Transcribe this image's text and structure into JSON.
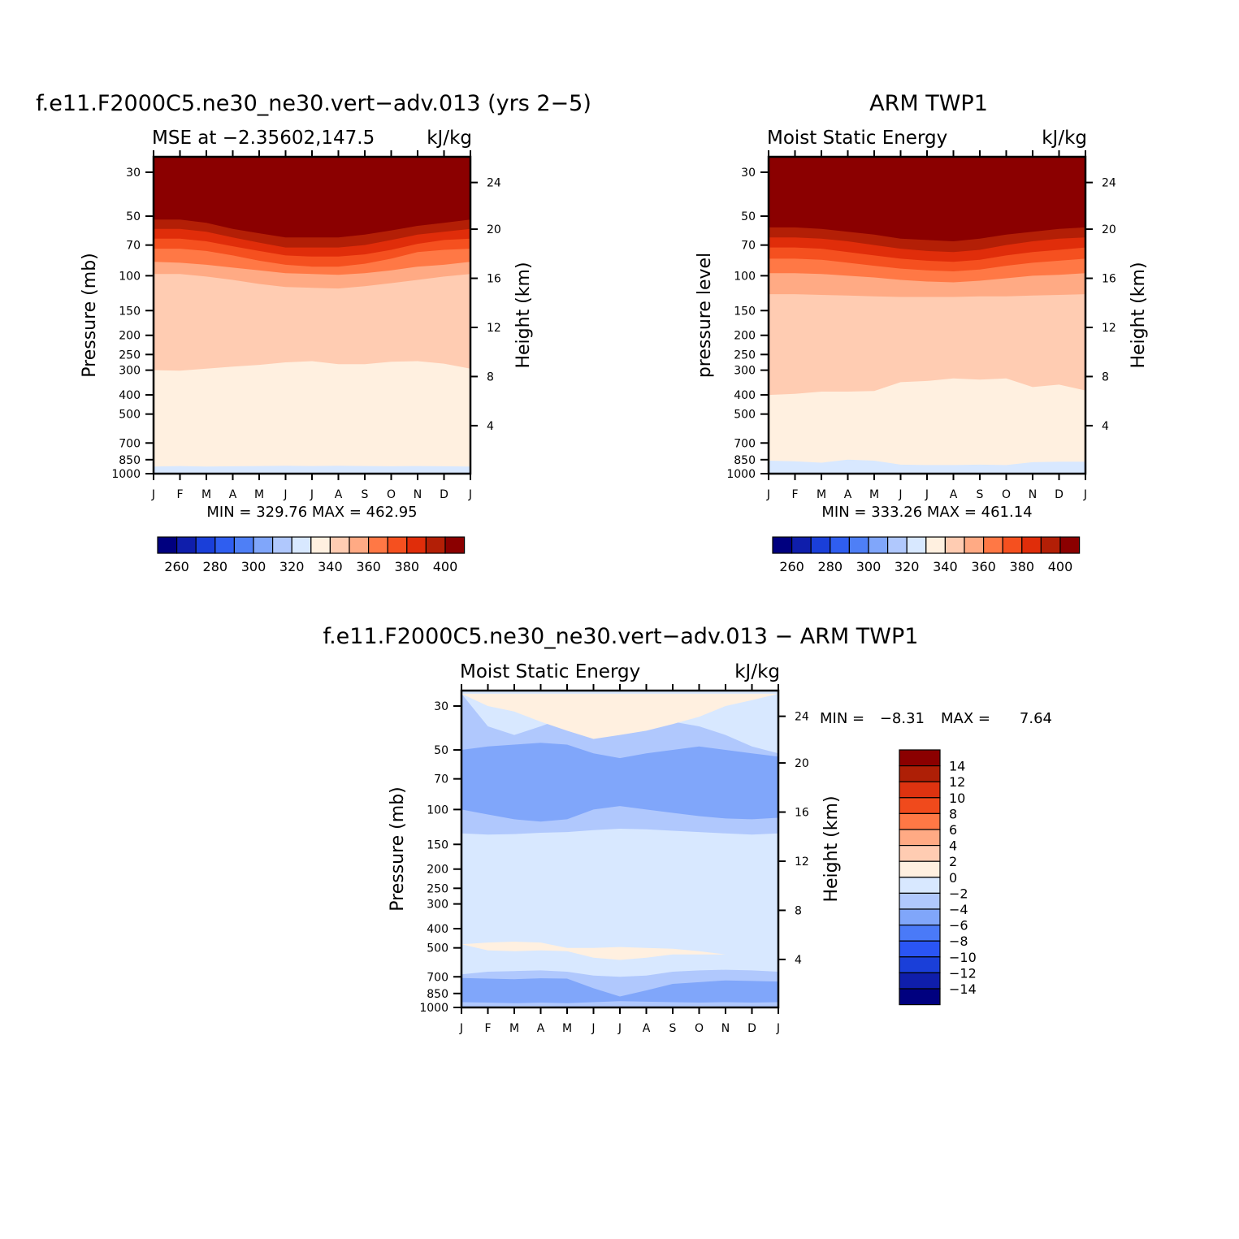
{
  "colors": {
    "abs_levels": [
      "#00007f",
      "#0f1eab",
      "#1a3fd9",
      "#2f5ef0",
      "#4e7ff6",
      "#80a6fa",
      "#b0c8fd",
      "#d8e8ff",
      "#fff0e0",
      "#ffccb2",
      "#ffaa84",
      "#ff7845",
      "#f5501f",
      "#e02d0a",
      "#b31f06",
      "#8b0000"
    ],
    "diff_levels": [
      "#00007f",
      "#0f1eab",
      "#1a3fd9",
      "#2a55f5",
      "#4a7af8",
      "#80a6fa",
      "#b0c8fd",
      "#d8e8ff",
      "#fff0e0",
      "#ffccb2",
      "#ffaa84",
      "#ff7845",
      "#f04a1c",
      "#de3310",
      "#ae1f06",
      "#8b0000"
    ]
  },
  "chart_data": [
    {
      "type": "heatmap",
      "title": "f.e11.F2000C5.ne30_ne30.vert−adv.013 (yrs 2−5)",
      "subtitle_left": "MSE at −2.35602,147.5",
      "subtitle_right": "kJ/kg",
      "ylabel": "Pressure (mb)",
      "y2label": "Height (km)",
      "months": [
        "J",
        "F",
        "M",
        "A",
        "M",
        "J",
        "J",
        "A",
        "S",
        "O",
        "N",
        "D",
        "J"
      ],
      "pressure_ticks": [
        "30",
        "50",
        "70",
        "100",
        "150",
        "200",
        "250",
        "300",
        "400",
        "500",
        "700",
        "850",
        "1000"
      ],
      "height_ticks": [
        "24",
        "20",
        "16",
        "12",
        "8",
        "4"
      ],
      "stats": "MIN = 329.76 MAX = 462.95",
      "colorbar_labels": [
        "260",
        "280",
        "300",
        "320",
        "340",
        "360",
        "380",
        "400"
      ],
      "contour_levels": [
        400,
        390,
        380,
        370,
        360,
        350,
        340,
        330
      ],
      "boundaries_mb": [
        [
          52,
          52,
          54,
          58,
          61,
          64,
          64,
          64,
          62,
          59,
          56,
          54,
          52
        ],
        [
          58,
          58,
          60,
          64,
          68,
          72,
          72,
          72,
          70,
          66,
          62,
          60,
          58
        ],
        [
          65,
          65,
          67,
          71,
          75,
          79,
          80,
          80,
          78,
          74,
          69,
          66,
          65
        ],
        [
          73,
          73,
          75,
          79,
          84,
          88,
          90,
          90,
          87,
          82,
          76,
          74,
          73
        ],
        [
          85,
          86,
          88,
          91,
          94,
          97,
          98,
          99,
          97,
          94,
          90,
          88,
          85
        ],
        [
          98,
          98,
          101,
          105,
          110,
          114,
          115,
          116,
          113,
          109,
          105,
          101,
          98
        ],
        [
          300,
          302,
          295,
          288,
          282,
          274,
          270,
          280,
          280,
          272,
          270,
          278,
          295
        ],
        [
          920,
          915,
          920,
          918,
          915,
          912,
          915,
          912,
          915,
          918,
          915,
          918,
          920
        ]
      ]
    },
    {
      "type": "heatmap",
      "title": "ARM TWP1",
      "subtitle_left": "Moist Static Energy",
      "subtitle_right": "kJ/kg",
      "ylabel": "pressure level",
      "y2label": "Height (km)",
      "months": [
        "J",
        "F",
        "M",
        "A",
        "M",
        "J",
        "J",
        "A",
        "S",
        "O",
        "N",
        "D",
        "J"
      ],
      "pressure_ticks": [
        "30",
        "50",
        "70",
        "100",
        "150",
        "200",
        "250",
        "300",
        "400",
        "500",
        "700",
        "850",
        "1000"
      ],
      "height_ticks": [
        "24",
        "20",
        "16",
        "12",
        "8",
        "4"
      ],
      "stats": "MIN = 333.26 MAX = 461.14",
      "colorbar_labels": [
        "260",
        "280",
        "300",
        "320",
        "340",
        "360",
        "380",
        "400"
      ],
      "contour_levels": [
        400,
        390,
        380,
        370,
        360,
        350,
        340,
        330
      ],
      "boundaries_mb": [
        [
          57,
          57,
          58,
          60,
          62,
          65,
          66,
          67,
          65,
          62,
          60,
          58,
          57
        ],
        [
          64,
          64,
          65,
          67,
          70,
          73,
          75,
          76,
          74,
          70,
          67,
          65,
          64
        ],
        [
          72,
          72,
          73,
          76,
          79,
          82,
          84,
          85,
          83,
          79,
          76,
          74,
          72
        ],
        [
          82,
          82,
          83,
          86,
          89,
          92,
          94,
          95,
          93,
          89,
          86,
          84,
          82
        ],
        [
          97,
          97,
          98,
          100,
          102,
          105,
          107,
          108,
          106,
          103,
          100,
          99,
          97
        ],
        [
          124,
          124,
          125,
          126,
          127,
          128,
          128,
          128,
          127,
          127,
          126,
          125,
          124
        ],
        [
          400,
          395,
          385,
          385,
          382,
          345,
          340,
          330,
          335,
          330,
          365,
          355,
          380
        ],
        [
          860,
          865,
          880,
          850,
          860,
          900,
          905,
          905,
          900,
          905,
          875,
          870,
          870
        ]
      ]
    },
    {
      "type": "heatmap",
      "title": "f.e11.F2000C5.ne30_ne30.vert−adv.013 − ARM TWP1",
      "subtitle_left": "Moist Static Energy",
      "subtitle_right": "kJ/kg",
      "ylabel": "Pressure (mb)",
      "y2label": "Height (km)",
      "months": [
        "J",
        "F",
        "M",
        "A",
        "M",
        "J",
        "J",
        "A",
        "S",
        "O",
        "N",
        "D",
        "J"
      ],
      "pressure_ticks": [
        "30",
        "50",
        "70",
        "100",
        "150",
        "200",
        "250",
        "300",
        "400",
        "500",
        "700",
        "850",
        "1000"
      ],
      "height_ticks": [
        "24",
        "20",
        "16",
        "12",
        "8",
        "4"
      ],
      "stats_min_label": "MIN =",
      "stats_min": "−8.31",
      "stats_max_label": "MAX =",
      "stats_max": "7.64",
      "colorbar_labels": [
        "14",
        "12",
        "10",
        "8",
        "6",
        "4",
        "2",
        "0",
        "−2",
        "−4",
        "−6",
        "−8",
        "−10",
        "−12",
        "−14"
      ],
      "base_level": -2,
      "contours": [
        {
          "level": -4,
          "upper_mb": [
            26,
            38,
            42,
            38,
            34,
            32,
            31,
            33,
            36,
            38,
            42,
            48,
            52
          ],
          "lower_mb": [
            132,
            134,
            133,
            131,
            130,
            127,
            125,
            126,
            128,
            130,
            132,
            134,
            132
          ]
        },
        {
          "level": -4,
          "upper_mb": [
            680,
            660,
            655,
            650,
            660,
            690,
            700,
            690,
            660,
            650,
            645,
            650,
            660
          ],
          "lower_mb": [
            1000,
            990,
            985,
            985,
            995,
            1000,
            1000,
            1000,
            990,
            985,
            990,
            1000,
            1000
          ]
        },
        {
          "level": -6,
          "upper_mb": [
            50,
            48,
            47,
            46,
            47,
            52,
            55,
            52,
            50,
            48,
            50,
            52,
            54
          ],
          "lower_mb": [
            100,
            106,
            112,
            115,
            112,
            100,
            96,
            100,
            104,
            108,
            111,
            112,
            110
          ]
        },
        {
          "level": -6,
          "upper_mb": [
            710,
            715,
            720,
            712,
            715,
            800,
            880,
            820,
            760,
            745,
            730,
            735,
            740
          ],
          "lower_mb": [
            940,
            945,
            950,
            945,
            950,
            940,
            930,
            935,
            940,
            945,
            940,
            945,
            940
          ]
        },
        {
          "level": 0,
          "upper_mb": [
            26,
            26,
            26,
            26,
            26,
            26,
            26,
            26,
            26,
            26,
            26,
            26,
            26
          ],
          "lower_mb": [
            26,
            30,
            32,
            36,
            40,
            44,
            42,
            40,
            37,
            34,
            30,
            28,
            26
          ]
        },
        {
          "level": 0,
          "upper_mb": [
            480,
            470,
            465,
            470,
            500,
            500,
            495,
            500,
            505,
            520,
            540,
            545,
            545
          ],
          "lower_mb": [
            480,
            515,
            520,
            515,
            520,
            560,
            575,
            560,
            540,
            540,
            540,
            545,
            545
          ]
        }
      ]
    }
  ]
}
